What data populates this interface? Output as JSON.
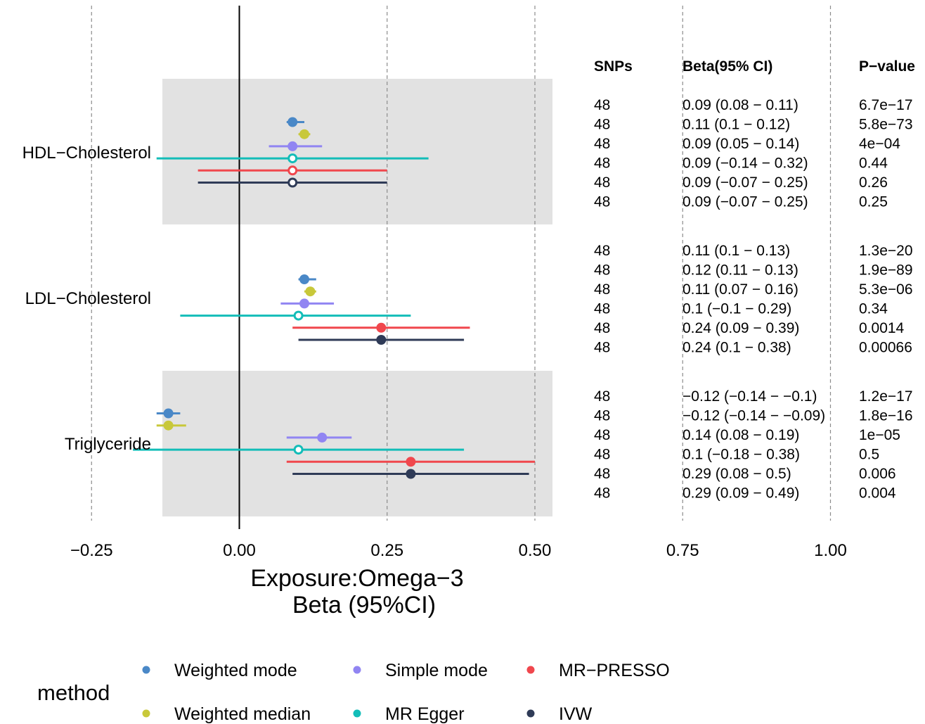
{
  "chart_data": {
    "type": "forest",
    "xlabel": "Exposure:Omega−3",
    "xlabel2": "Beta (95%CI)",
    "xlim": [
      -0.25,
      1.06
    ],
    "xticks": [
      -0.25,
      0.0,
      0.25,
      0.5,
      0.75,
      1.0
    ],
    "xtick_labels": [
      "−0.25",
      "0.00",
      "0.25",
      "0.50",
      "0.75",
      "1.00"
    ],
    "reference_line": 0,
    "grid": "dashed vertical",
    "table_headers": [
      "SNPs",
      "Beta(95% CI)",
      "P−value"
    ],
    "outcomes": [
      {
        "name": "HDL−Cholesterol",
        "shaded": true,
        "rows": [
          {
            "method": "Weighted mode",
            "beta": 0.09,
            "lo": 0.08,
            "hi": 0.11,
            "snps": "48",
            "ci_text": "0.09 (0.08 − 0.11)",
            "p": "6.7e−17"
          },
          {
            "method": "Weighted median",
            "beta": 0.11,
            "lo": 0.1,
            "hi": 0.12,
            "snps": "48",
            "ci_text": "0.11 (0.1 − 0.12)",
            "p": "5.8e−73"
          },
          {
            "method": "Simple mode",
            "beta": 0.09,
            "lo": 0.05,
            "hi": 0.14,
            "snps": "48",
            "ci_text": "0.09 (0.05 − 0.14)",
            "p": "4e−04"
          },
          {
            "method": "MR Egger",
            "beta": 0.09,
            "lo": -0.14,
            "hi": 0.32,
            "snps": "48",
            "ci_text": "0.09 (−0.14 − 0.32)",
            "p": "0.44"
          },
          {
            "method": "MR−PRESSO",
            "beta": 0.09,
            "lo": -0.07,
            "hi": 0.25,
            "snps": "48",
            "ci_text": "0.09 (−0.07 − 0.25)",
            "p": "0.26"
          },
          {
            "method": "IVW",
            "beta": 0.09,
            "lo": -0.07,
            "hi": 0.25,
            "snps": "48",
            "ci_text": "0.09 (−0.07 − 0.25)",
            "p": "0.25"
          }
        ]
      },
      {
        "name": "LDL−Cholesterol",
        "shaded": false,
        "rows": [
          {
            "method": "Weighted mode",
            "beta": 0.11,
            "lo": 0.1,
            "hi": 0.13,
            "snps": "48",
            "ci_text": "0.11 (0.1 − 0.13)",
            "p": "1.3e−20"
          },
          {
            "method": "Weighted median",
            "beta": 0.12,
            "lo": 0.11,
            "hi": 0.13,
            "snps": "48",
            "ci_text": "0.12 (0.11 − 0.13)",
            "p": "1.9e−89"
          },
          {
            "method": "Simple mode",
            "beta": 0.11,
            "lo": 0.07,
            "hi": 0.16,
            "snps": "48",
            "ci_text": "0.11 (0.07 − 0.16)",
            "p": "5.3e−06"
          },
          {
            "method": "MR Egger",
            "beta": 0.1,
            "lo": -0.1,
            "hi": 0.29,
            "snps": "48",
            "ci_text": "0.1 (−0.1 − 0.29)",
            "p": "0.34"
          },
          {
            "method": "MR−PRESSO",
            "beta": 0.24,
            "lo": 0.09,
            "hi": 0.39,
            "snps": "48",
            "ci_text": "0.24 (0.09 − 0.39)",
            "p": "0.0014"
          },
          {
            "method": "IVW",
            "beta": 0.24,
            "lo": 0.1,
            "hi": 0.38,
            "snps": "48",
            "ci_text": "0.24 (0.1 − 0.38)",
            "p": "0.00066"
          }
        ]
      },
      {
        "name": "Triglyceride",
        "shaded": true,
        "rows": [
          {
            "method": "Weighted mode",
            "beta": -0.12,
            "lo": -0.14,
            "hi": -0.1,
            "snps": "48",
            "ci_text": "−0.12 (−0.14 − −0.1)",
            "p": "1.2e−17"
          },
          {
            "method": "Weighted median",
            "beta": -0.12,
            "lo": -0.14,
            "hi": -0.09,
            "snps": "48",
            "ci_text": "−0.12 (−0.14 − −0.09)",
            "p": "1.8e−16"
          },
          {
            "method": "Simple mode",
            "beta": 0.14,
            "lo": 0.08,
            "hi": 0.19,
            "snps": "48",
            "ci_text": "0.14 (0.08 − 0.19)",
            "p": "1e−05"
          },
          {
            "method": "MR Egger",
            "beta": 0.1,
            "lo": -0.18,
            "hi": 0.38,
            "snps": "48",
            "ci_text": "0.1 (−0.18 − 0.38)",
            "p": "0.5"
          },
          {
            "method": "MR−PRESSO",
            "beta": 0.29,
            "lo": 0.08,
            "hi": 0.5,
            "snps": "48",
            "ci_text": "0.29 (0.08 − 0.5)",
            "p": "0.006"
          },
          {
            "method": "IVW",
            "beta": 0.29,
            "lo": 0.09,
            "hi": 0.49,
            "snps": "48",
            "ci_text": "0.29 (0.09 − 0.49)",
            "p": "0.004"
          }
        ]
      }
    ],
    "methods": [
      {
        "name": "Weighted mode",
        "color": "#4a88c7",
        "marker": "filled"
      },
      {
        "name": "Weighted median",
        "color": "#c8c83a",
        "marker": "filled"
      },
      {
        "name": "Simple mode",
        "color": "#9185f2",
        "marker": "filled"
      },
      {
        "name": "MR Egger",
        "color": "#13bdb8",
        "marker": "open-when-ns"
      },
      {
        "name": "MR−PRESSO",
        "color": "#f0474d",
        "marker": "open-when-ns"
      },
      {
        "name": "IVW",
        "color": "#2f3b57",
        "marker": "open-when-ns"
      }
    ],
    "legend": {
      "title": "method",
      "placement": "bottom",
      "order": [
        "Weighted mode",
        "Simple mode",
        "MR−PRESSO",
        "Weighted median",
        "MR Egger",
        "IVW"
      ]
    },
    "colors": {
      "panel_shade": "#e2e2e2",
      "grid": "#8c8c8c"
    }
  }
}
